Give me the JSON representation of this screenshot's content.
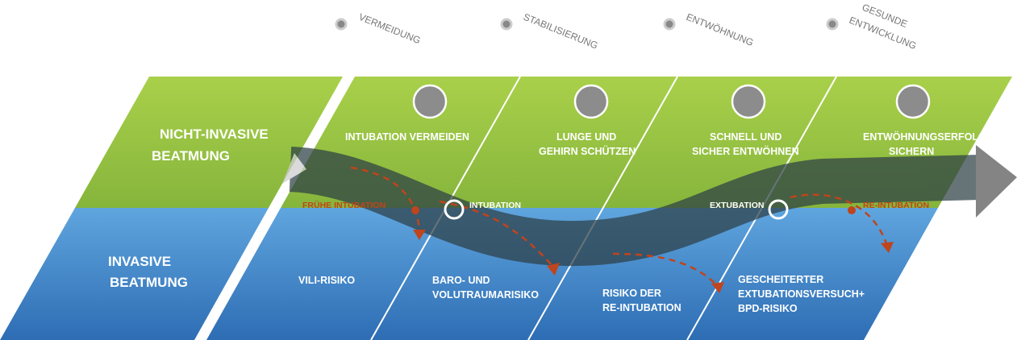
{
  "phases": [
    {
      "lines": [
        "VERMEIDUNG"
      ]
    },
    {
      "lines": [
        "STABILISIERUNG"
      ]
    },
    {
      "lines": [
        "ENTWÖHNUNG"
      ]
    },
    {
      "lines": [
        "GESUNDE",
        "ENTWICKLUNG"
      ]
    }
  ],
  "modes": {
    "non_invasive": {
      "lines": [
        "NICHT-INVASIVE",
        "BEATMUNG"
      ]
    },
    "invasive": {
      "lines": [
        "INVASIVE",
        "BEATMUNG"
      ]
    }
  },
  "goals": [
    {
      "lines": [
        "INTUBATION VERMEIDEN"
      ]
    },
    {
      "lines": [
        "LUNGE UND",
        "GEHIRN SCHÜTZEN"
      ]
    },
    {
      "lines": [
        "SCHNELL UND",
        "SICHER ENTWÖHNEN"
      ]
    },
    {
      "lines": [
        "ENTWÖHNUNGSERFOLG",
        "SICHERN"
      ]
    }
  ],
  "risks": [
    {
      "lines": [
        "VILI-RISIKO"
      ]
    },
    {
      "lines": [
        "BARO- UND",
        "VOLUTRAUMARISIKO"
      ]
    },
    {
      "lines": [
        "RISIKO DER",
        "RE-INTUBATION"
      ]
    },
    {
      "lines": [
        "GESCHEITERTER",
        "EXTUBATIONSVERSUCH+",
        "BPD-RISIKO"
      ]
    }
  ],
  "events": {
    "early_intubation": "FRÜHE INTUBATION",
    "intubation": "INTUBATION",
    "extubation": "EXTUBATION",
    "re_intubation": "RE-INTUBATION"
  }
}
